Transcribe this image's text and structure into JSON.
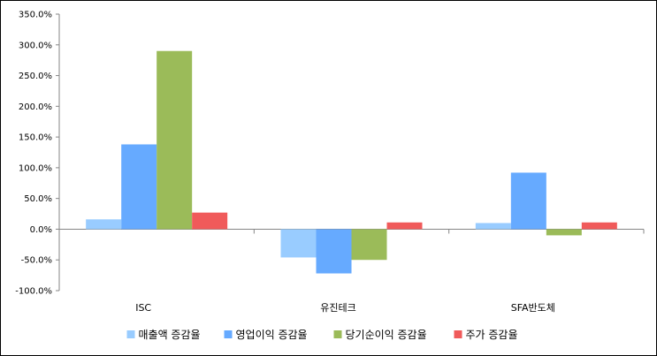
{
  "chart_data": {
    "type": "bar",
    "categories": [
      "ISC",
      "유진테크",
      "SFA반도체"
    ],
    "series": [
      {
        "name": "매출액 증감율",
        "color": "#99CCFF",
        "values": [
          16,
          -46,
          10
        ]
      },
      {
        "name": "영업이익 증감율",
        "color": "#66AAFF",
        "values": [
          138,
          -72,
          92
        ]
      },
      {
        "name": "당기순이익 증감율",
        "color": "#9BBB59",
        "values": [
          290,
          -50,
          -10
        ]
      },
      {
        "name": "주가 증감율",
        "color": "#F05A5A",
        "values": [
          27,
          11,
          11
        ]
      }
    ],
    "ylim": [
      -100,
      350
    ],
    "yticks": [
      350,
      300,
      250,
      200,
      150,
      100,
      50,
      0,
      -50,
      -100
    ],
    "ytick_labels": [
      "350.0%",
      "300.0%",
      "250.0%",
      "200.0%",
      "150.0%",
      "100.0%",
      "50.0%",
      "0.0%",
      "-50.0%",
      "-100.0%"
    ],
    "grid": false,
    "legend_position": "bottom"
  }
}
